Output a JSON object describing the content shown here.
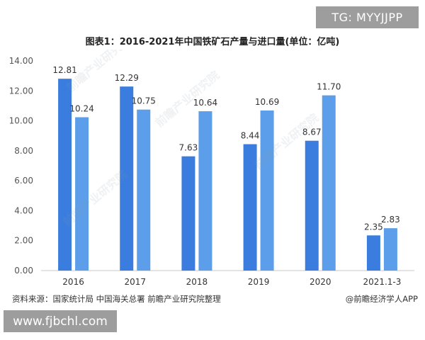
{
  "badges": {
    "top": "TG: MYYJJPP",
    "bottom": "www.fjbchl.com"
  },
  "watermark": "前瞻产业研究院",
  "footer": {
    "source": "资料来源：国家统计局 中国海关总署 前瞻产业研究院整理",
    "credit": "@前瞻经济学人APP"
  },
  "chart_data": {
    "type": "bar",
    "title": "图表1：2016-2021年中国铁矿石产量与进口量(单位：亿吨)",
    "xlabel": "",
    "ylabel": "",
    "categories": [
      "2016",
      "2017",
      "2018",
      "2019",
      "2020",
      "2021.1-3"
    ],
    "series": [
      {
        "values": [
          12.81,
          12.29,
          7.63,
          8.44,
          8.67,
          2.35
        ],
        "color": "#3b7dde"
      },
      {
        "values": [
          10.24,
          10.75,
          10.64,
          10.69,
          11.7,
          2.83
        ],
        "color": "#5c9ee9"
      }
    ],
    "ylim": [
      0,
      14
    ],
    "yticks": [
      "0.00",
      "2.00",
      "4.00",
      "6.00",
      "8.00",
      "10.00",
      "12.00",
      "14.00"
    ],
    "grid": false,
    "legend": "none"
  }
}
